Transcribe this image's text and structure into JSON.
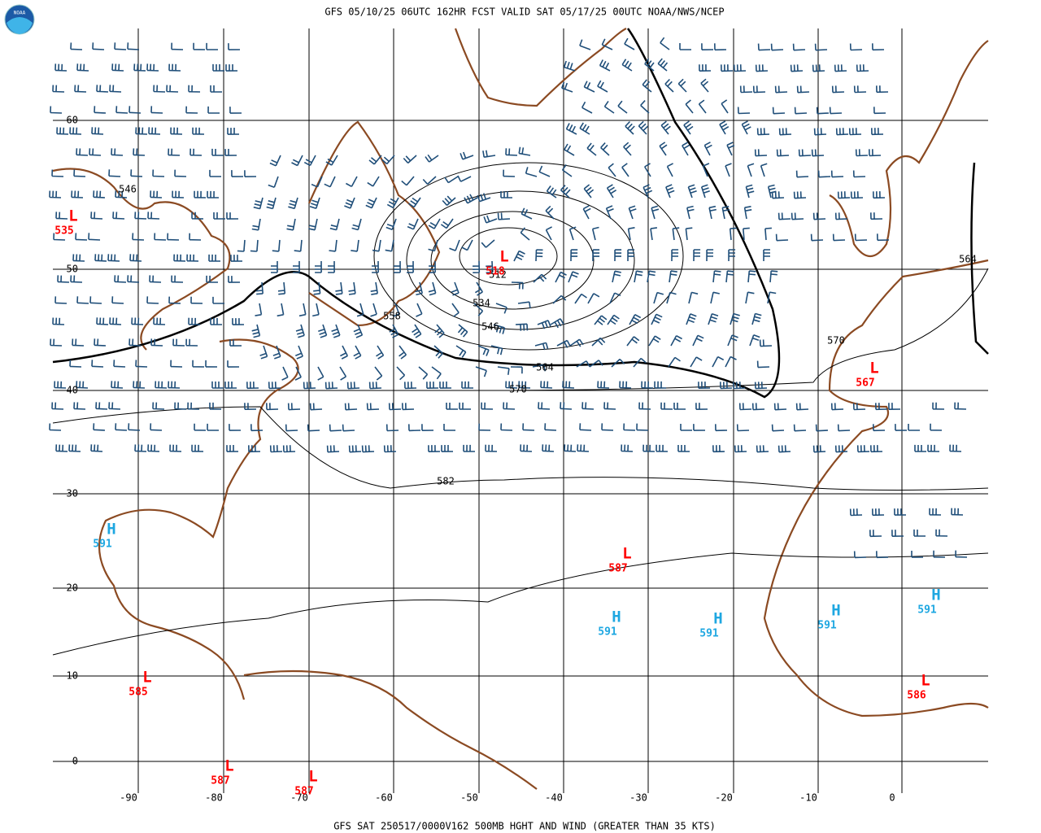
{
  "header": {
    "title": "GFS 05/10/25 06UTC 162HR FCST VALID SAT 05/17/25 00UTC NOAA/NWS/NCEP",
    "logo": "NOAA"
  },
  "footer": {
    "title": "GFS SAT 250517/0000V162 500MB HGHT AND WIND (GREATER THAN 35 KTS)"
  },
  "map": {
    "latitude_labels": [
      "60",
      "50",
      "40",
      "30",
      "20",
      "10",
      "0"
    ],
    "longitude_labels": [
      "-90",
      "-80",
      "-70",
      "-60",
      "-50",
      "-40",
      "-30",
      "-20",
      "-10",
      "0"
    ],
    "contour_labels": [
      "546",
      "564",
      "558",
      "534",
      "546",
      "564",
      "570",
      "570",
      "582",
      "512"
    ],
    "systems": [
      {
        "letter": "L",
        "value": "535"
      },
      {
        "letter": "L",
        "value": "518"
      },
      {
        "letter": "L",
        "value": "567"
      },
      {
        "letter": "H",
        "value": "591"
      },
      {
        "letter": "L",
        "value": "587"
      },
      {
        "letter": "H",
        "value": "591"
      },
      {
        "letter": "H",
        "value": "591"
      },
      {
        "letter": "H",
        "value": "591"
      },
      {
        "letter": "H",
        "value": "591"
      },
      {
        "letter": "L",
        "value": "585"
      },
      {
        "letter": "L",
        "value": "586"
      },
      {
        "letter": "L",
        "value": "587"
      },
      {
        "letter": "L",
        "value": "587"
      }
    ]
  }
}
